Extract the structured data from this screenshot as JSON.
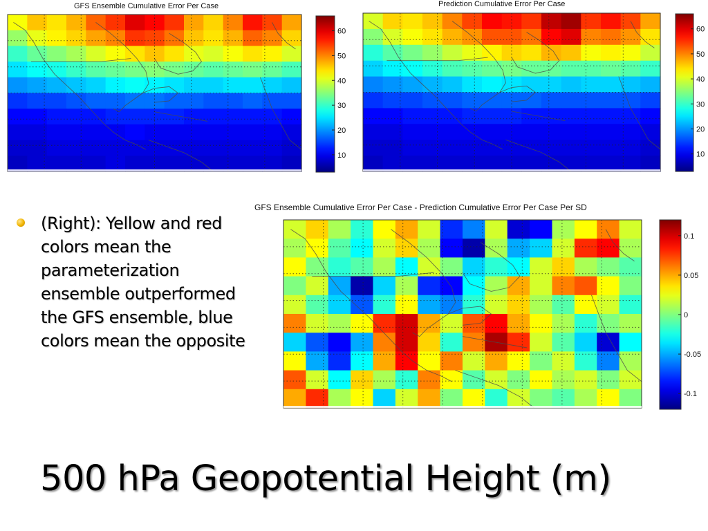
{
  "panels": {
    "gfs": {
      "title": "GFS Ensemble Cumulative Error Per Case",
      "colorbar_ticks": [
        "60",
        "50",
        "40",
        "30",
        "20",
        "10"
      ]
    },
    "prediction": {
      "title": "Prediction Cumulative Error Per Case",
      "colorbar_ticks": [
        "60",
        "50",
        "40",
        "30",
        "20",
        "10"
      ]
    },
    "difference": {
      "title": "GFS Ensemble Cumulative Error Per Case - Prediction Cumulative Error Per Case Per SD",
      "colorbar_ticks": [
        "0.1",
        "0.05",
        "0",
        "-0.05",
        "-0.1"
      ]
    }
  },
  "bullet": {
    "text": "(Right): Yellow and red colors mean the parameterization ensemble outperformed the GFS ensemble, blue colors mean the opposite"
  },
  "slide": {
    "title": "500 hPa Geopotential Height (m)"
  },
  "colors": {
    "jet_low": "#00008f",
    "jet_mid": "#00ffff",
    "jet_high": "#800000",
    "bullet": "#f1b400"
  },
  "chart_data": [
    {
      "type": "heatmap",
      "title": "GFS Ensemble Cumulative Error Per Case",
      "colorbar_range": [
        3,
        66
      ],
      "colorbar_ticks": [
        10,
        20,
        30,
        40,
        50,
        60
      ],
      "values": [
        [
          42,
          46,
          44,
          47,
          52,
          55,
          60,
          58,
          55,
          48,
          45,
          50,
          57,
          54,
          48
        ],
        [
          36,
          41,
          43,
          45,
          48,
          50,
          55,
          54,
          51,
          46,
          44,
          47,
          52,
          50,
          45
        ],
        [
          30,
          33,
          35,
          37,
          40,
          42,
          44,
          46,
          44,
          41,
          40,
          42,
          44,
          43,
          40
        ],
        [
          25,
          27,
          28,
          30,
          32,
          33,
          34,
          35,
          34,
          33,
          32,
          33,
          34,
          33,
          31
        ],
        [
          20,
          21,
          22,
          23,
          24,
          26,
          27,
          26,
          25,
          24,
          24,
          25,
          25,
          24,
          23
        ],
        [
          14,
          15,
          15,
          16,
          17,
          17,
          18,
          18,
          17,
          17,
          16,
          16,
          17,
          16,
          16
        ],
        [
          11,
          11,
          12,
          12,
          12,
          13,
          13,
          13,
          13,
          12,
          12,
          12,
          12,
          12,
          11
        ],
        [
          9,
          9,
          10,
          10,
          10,
          10,
          11,
          10,
          10,
          10,
          10,
          10,
          10,
          10,
          9
        ],
        [
          8,
          8,
          9,
          9,
          9,
          9,
          9,
          9,
          9,
          9,
          9,
          9,
          9,
          9,
          8
        ],
        [
          7,
          8,
          8,
          8,
          8,
          9,
          8,
          8,
          8,
          8,
          8,
          8,
          8,
          8,
          7
        ]
      ]
    },
    {
      "type": "heatmap",
      "title": "Prediction Cumulative Error Per Case",
      "colorbar_range": [
        3,
        66
      ],
      "colorbar_ticks": [
        10,
        20,
        30,
        40,
        50,
        60
      ],
      "values": [
        [
          40,
          45,
          44,
          46,
          50,
          54,
          58,
          57,
          55,
          62,
          64,
          55,
          57,
          54,
          48
        ],
        [
          35,
          40,
          42,
          44,
          47,
          49,
          53,
          53,
          51,
          58,
          60,
          50,
          51,
          49,
          44
        ],
        [
          29,
          32,
          34,
          36,
          39,
          41,
          43,
          45,
          44,
          47,
          46,
          42,
          43,
          42,
          39
        ],
        [
          24,
          26,
          27,
          29,
          31,
          32,
          33,
          34,
          33,
          33,
          32,
          32,
          33,
          32,
          30
        ],
        [
          19,
          20,
          21,
          22,
          23,
          25,
          26,
          25,
          24,
          24,
          23,
          24,
          24,
          23,
          22
        ],
        [
          14,
          15,
          15,
          16,
          16,
          17,
          17,
          17,
          17,
          16,
          16,
          16,
          16,
          16,
          15
        ],
        [
          11,
          11,
          12,
          12,
          12,
          13,
          13,
          13,
          12,
          12,
          12,
          12,
          12,
          12,
          11
        ],
        [
          9,
          9,
          10,
          10,
          10,
          10,
          10,
          10,
          10,
          10,
          10,
          10,
          10,
          10,
          9
        ],
        [
          8,
          8,
          9,
          9,
          9,
          9,
          9,
          9,
          9,
          9,
          9,
          9,
          9,
          9,
          8
        ],
        [
          7,
          8,
          8,
          8,
          8,
          8,
          8,
          8,
          8,
          8,
          8,
          8,
          8,
          8,
          7
        ]
      ]
    },
    {
      "type": "heatmap",
      "title": "GFS Ensemble Cumulative Error Per Case - Prediction Cumulative Error Per Case Per SD",
      "colorbar_range": [
        -0.12,
        0.12
      ],
      "colorbar_ticks": [
        0.1,
        0.05,
        0,
        -0.05,
        -0.1
      ],
      "values": [
        [
          0.02,
          0.04,
          0.01,
          -0.02,
          0.03,
          0.05,
          0.02,
          -0.08,
          -0.06,
          0.02,
          -0.1,
          -0.09,
          0.01,
          0.03,
          0.06,
          0.02
        ],
        [
          0.01,
          0.03,
          -0.01,
          -0.03,
          0.02,
          0.04,
          0.01,
          -0.09,
          -0.11,
          0.01,
          -0.05,
          -0.04,
          0.02,
          0.08,
          0.09,
          0.01
        ],
        [
          0.03,
          0.0,
          -0.02,
          -0.01,
          0.01,
          -0.03,
          0.02,
          0.0,
          -0.04,
          -0.02,
          -0.03,
          0.02,
          0.04,
          0.01,
          0.0,
          -0.01
        ],
        [
          0.0,
          0.02,
          -0.05,
          -0.11,
          -0.04,
          0.01,
          -0.08,
          -0.09,
          -0.03,
          0.01,
          0.05,
          0.02,
          0.06,
          0.07,
          0.03,
          0.0
        ],
        [
          0.02,
          -0.01,
          -0.04,
          -0.07,
          -0.02,
          0.03,
          -0.05,
          -0.06,
          -0.02,
          0.02,
          0.04,
          0.01,
          -0.01,
          0.03,
          0.02,
          -0.02
        ],
        [
          0.06,
          0.02,
          0.01,
          0.03,
          0.08,
          0.1,
          0.05,
          0.02,
          0.07,
          0.09,
          0.05,
          0.03,
          0.01,
          -0.02,
          0.0,
          0.01
        ],
        [
          -0.04,
          -0.07,
          -0.09,
          -0.05,
          0.06,
          0.1,
          0.04,
          -0.02,
          0.06,
          0.11,
          0.08,
          0.02,
          -0.01,
          -0.04,
          -0.1,
          -0.03
        ],
        [
          0.03,
          -0.05,
          -0.08,
          -0.03,
          0.05,
          0.09,
          0.03,
          0.06,
          0.02,
          0.05,
          0.03,
          0.0,
          0.02,
          -0.02,
          -0.06,
          0.01
        ],
        [
          0.07,
          0.02,
          -0.03,
          0.04,
          0.01,
          -0.02,
          0.06,
          0.03,
          -0.01,
          0.02,
          0.0,
          0.03,
          0.01,
          0.02,
          0.0,
          0.02
        ],
        [
          0.05,
          0.08,
          0.01,
          0.03,
          -0.04,
          0.02,
          0.05,
          0.0,
          0.03,
          -0.02,
          0.02,
          0.0,
          -0.01,
          0.01,
          0.03,
          0.0
        ]
      ]
    }
  ]
}
